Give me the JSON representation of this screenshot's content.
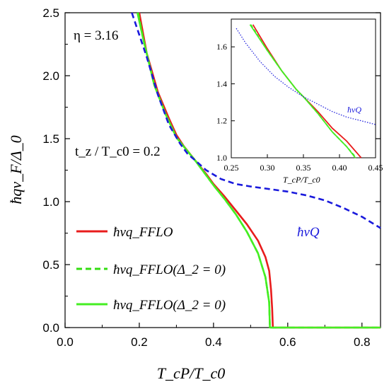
{
  "chart_data": {
    "type": "line",
    "xlabel": "T_cP/T_c0",
    "ylabel": "ħqv_F/Δ_0",
    "xlim": [
      0.0,
      0.85
    ],
    "ylim": [
      0.0,
      2.5
    ],
    "xticks": [
      "0.0",
      "0.2",
      "0.4",
      "0.6",
      "0.8"
    ],
    "yticks": [
      "0.0",
      "0.5",
      "1.0",
      "1.5",
      "2.0",
      "2.5"
    ],
    "annotations": {
      "eta": "η = 3.16",
      "tz": "t_z / T_c0 = 0.2",
      "vQ_label": "ħvQ"
    },
    "legend": {
      "placement": "lower-left",
      "entries": [
        {
          "label": "ħvq_FFLO",
          "color": "#e81c1c",
          "style": "solid"
        },
        {
          "label": "ħvq_FFLO(Δ_2 = 0)",
          "color": "#33dd11",
          "style": "dashed"
        },
        {
          "label": "ħvq_FFLO(Δ_2 = 0)",
          "color": "#44ee22",
          "style": "solid"
        }
      ]
    },
    "series": [
      {
        "color": "#e81c1c",
        "style": "solid",
        "points": [
          [
            0.2,
            2.5
          ],
          [
            0.22,
            2.18
          ],
          [
            0.25,
            1.87
          ],
          [
            0.28,
            1.66
          ],
          [
            0.3,
            1.53
          ],
          [
            0.32,
            1.44
          ],
          [
            0.35,
            1.33
          ],
          [
            0.38,
            1.22
          ],
          [
            0.4,
            1.14
          ],
          [
            0.43,
            1.04
          ],
          [
            0.46,
            0.93
          ],
          [
            0.49,
            0.82
          ],
          [
            0.52,
            0.69
          ],
          [
            0.54,
            0.56
          ],
          [
            0.55,
            0.45
          ],
          [
            0.555,
            0.3
          ],
          [
            0.558,
            0.15
          ],
          [
            0.56,
            0.0
          ],
          [
            0.85,
            0.0
          ]
        ]
      },
      {
        "color": "#33dd11",
        "style": "dashed",
        "points": [
          [
            0.197,
            2.5
          ],
          [
            0.21,
            2.3
          ],
          [
            0.24,
            1.93
          ],
          [
            0.27,
            1.7
          ],
          [
            0.3,
            1.51
          ],
          [
            0.33,
            1.4
          ],
          [
            0.35,
            1.33
          ],
          [
            0.38,
            1.21
          ],
          [
            0.4,
            1.13
          ],
          [
            0.43,
            1.02
          ],
          [
            0.46,
            0.9
          ],
          [
            0.49,
            0.76
          ],
          [
            0.52,
            0.59
          ],
          [
            0.54,
            0.4
          ],
          [
            0.55,
            0.2
          ],
          [
            0.552,
            0.0
          ],
          [
            0.85,
            0.0
          ]
        ]
      },
      {
        "color": "#44ee22",
        "style": "solid",
        "points": [
          [
            0.195,
            2.5
          ],
          [
            0.21,
            2.3
          ],
          [
            0.24,
            1.93
          ],
          [
            0.27,
            1.7
          ],
          [
            0.3,
            1.51
          ],
          [
            0.33,
            1.4
          ],
          [
            0.35,
            1.33
          ],
          [
            0.38,
            1.21
          ],
          [
            0.4,
            1.13
          ],
          [
            0.43,
            1.02
          ],
          [
            0.46,
            0.9
          ],
          [
            0.49,
            0.76
          ],
          [
            0.52,
            0.59
          ],
          [
            0.54,
            0.4
          ],
          [
            0.55,
            0.2
          ],
          [
            0.552,
            0.0
          ],
          [
            0.85,
            0.0
          ]
        ]
      },
      {
        "name": "ħvQ",
        "color": "#1a1adc",
        "style": "dashed",
        "points": [
          [
            0.18,
            2.5
          ],
          [
            0.22,
            2.15
          ],
          [
            0.25,
            1.85
          ],
          [
            0.28,
            1.61
          ],
          [
            0.31,
            1.46
          ],
          [
            0.33,
            1.38
          ],
          [
            0.35,
            1.33
          ],
          [
            0.38,
            1.25
          ],
          [
            0.42,
            1.18
          ],
          [
            0.46,
            1.14
          ],
          [
            0.5,
            1.12
          ],
          [
            0.55,
            1.1
          ],
          [
            0.6,
            1.08
          ],
          [
            0.65,
            1.05
          ],
          [
            0.7,
            1.01
          ],
          [
            0.75,
            0.95
          ],
          [
            0.8,
            0.88
          ],
          [
            0.85,
            0.79
          ]
        ]
      }
    ],
    "inset": {
      "xlabel": "T_cP/T_c0",
      "xlim": [
        0.25,
        0.45
      ],
      "ylim": [
        1.0,
        1.75
      ],
      "xticks": [
        "0.25",
        "0.30",
        "0.35",
        "0.40",
        "0.45"
      ],
      "yticks": [
        "1.0",
        "1.2",
        "1.4",
        "1.6"
      ],
      "label": "ħvQ",
      "series": [
        {
          "color": "#e81c1c",
          "style": "solid",
          "points": [
            [
              0.28,
              1.72
            ],
            [
              0.3,
              1.59
            ],
            [
              0.32,
              1.47
            ],
            [
              0.34,
              1.37
            ],
            [
              0.35,
              1.33
            ],
            [
              0.37,
              1.25
            ],
            [
              0.39,
              1.16
            ],
            [
              0.41,
              1.09
            ],
            [
              0.43,
              1.0
            ]
          ]
        },
        {
          "color": "#33dd11",
          "style": "dashed",
          "points": [
            [
              0.277,
              1.72
            ],
            [
              0.3,
              1.58
            ],
            [
              0.32,
              1.47
            ],
            [
              0.34,
              1.37
            ],
            [
              0.35,
              1.33
            ],
            [
              0.37,
              1.24
            ],
            [
              0.39,
              1.14
            ],
            [
              0.41,
              1.06
            ],
            [
              0.423,
              1.0
            ]
          ]
        },
        {
          "color": "#44ee22",
          "style": "solid",
          "points": [
            [
              0.276,
              1.72
            ],
            [
              0.3,
              1.58
            ],
            [
              0.32,
              1.47
            ],
            [
              0.34,
              1.37
            ],
            [
              0.35,
              1.33
            ],
            [
              0.37,
              1.24
            ],
            [
              0.39,
              1.14
            ],
            [
              0.41,
              1.06
            ],
            [
              0.422,
              1.0
            ]
          ]
        },
        {
          "color": "#1a1adc",
          "style": "dotted",
          "points": [
            [
              0.257,
              1.7
            ],
            [
              0.27,
              1.62
            ],
            [
              0.29,
              1.52
            ],
            [
              0.31,
              1.44
            ],
            [
              0.33,
              1.38
            ],
            [
              0.35,
              1.33
            ],
            [
              0.37,
              1.29
            ],
            [
              0.39,
              1.25
            ],
            [
              0.41,
              1.22
            ],
            [
              0.43,
              1.2
            ],
            [
              0.45,
              1.18
            ]
          ]
        }
      ]
    }
  }
}
